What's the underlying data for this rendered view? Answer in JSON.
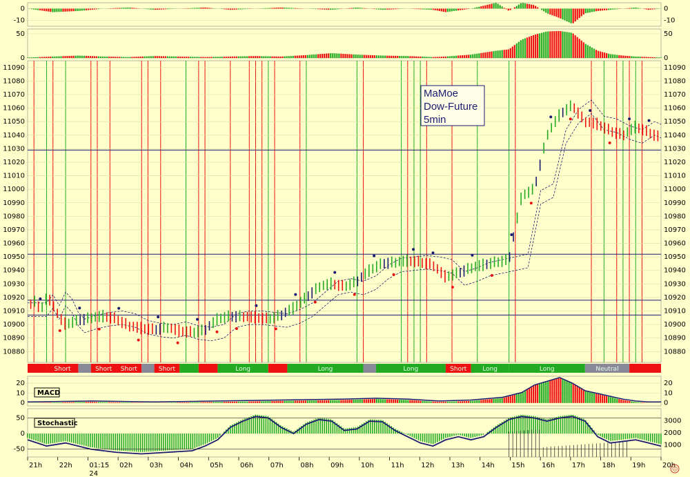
{
  "title_lines": [
    "MaMoe",
    "Dow-Future",
    "5min"
  ],
  "colors": {
    "background": "#ffffcc",
    "up": "#22aa22",
    "down": "#ee1111",
    "price": "#1a1a70",
    "grid": "#d9d9a0",
    "panel_label_bg": "#ffffcc"
  },
  "chart_data": [
    {
      "panel": "top-oscillator-1",
      "type": "area",
      "ylim": [
        -15,
        5
      ],
      "yticks": [
        0,
        -10
      ],
      "description_series": "histogram green/red",
      "points": [
        [
          0,
          0
        ],
        [
          4,
          -3
        ],
        [
          8,
          -2
        ],
        [
          12,
          0
        ],
        [
          16,
          1
        ],
        [
          20,
          -1
        ],
        [
          24,
          0
        ],
        [
          28,
          1
        ],
        [
          32,
          -1
        ],
        [
          36,
          0
        ],
        [
          40,
          1
        ],
        [
          44,
          0
        ],
        [
          48,
          -1
        ],
        [
          52,
          1
        ],
        [
          56,
          -1
        ],
        [
          60,
          0
        ],
        [
          64,
          -1
        ],
        [
          66,
          -3
        ],
        [
          70,
          0
        ],
        [
          74,
          5
        ],
        [
          76,
          -2
        ],
        [
          78,
          5
        ],
        [
          80,
          3
        ],
        [
          82,
          -4
        ],
        [
          84,
          -8
        ],
        [
          86,
          -13
        ],
        [
          88,
          -4
        ],
        [
          90,
          -2
        ],
        [
          92,
          -1
        ],
        [
          94,
          0
        ],
        [
          96,
          1
        ],
        [
          98,
          -1
        ],
        [
          100,
          0
        ]
      ]
    },
    {
      "panel": "top-oscillator-2",
      "type": "area",
      "ylim": [
        0,
        60
      ],
      "yticks": [
        50,
        0
      ],
      "points": [
        [
          0,
          1
        ],
        [
          4,
          3
        ],
        [
          8,
          5
        ],
        [
          12,
          3
        ],
        [
          16,
          2
        ],
        [
          20,
          4
        ],
        [
          24,
          3
        ],
        [
          28,
          2
        ],
        [
          32,
          3
        ],
        [
          36,
          4
        ],
        [
          40,
          3
        ],
        [
          44,
          6
        ],
        [
          48,
          10
        ],
        [
          52,
          7
        ],
        [
          56,
          5
        ],
        [
          60,
          4
        ],
        [
          64,
          2
        ],
        [
          66,
          3
        ],
        [
          70,
          7
        ],
        [
          74,
          15
        ],
        [
          76,
          18
        ],
        [
          78,
          38
        ],
        [
          80,
          48
        ],
        [
          82,
          55
        ],
        [
          84,
          56
        ],
        [
          86,
          52
        ],
        [
          88,
          30
        ],
        [
          90,
          15
        ],
        [
          92,
          8
        ],
        [
          94,
          5
        ],
        [
          96,
          3
        ],
        [
          98,
          2
        ],
        [
          100,
          1
        ]
      ]
    },
    {
      "panel": "price",
      "type": "line",
      "ylim": [
        10872,
        11095
      ],
      "yticks": [
        11090,
        11080,
        11070,
        11060,
        11050,
        11040,
        11030,
        11020,
        11010,
        11000,
        10990,
        10980,
        10970,
        10960,
        10950,
        10940,
        10930,
        10920,
        10910,
        10900,
        10890,
        10880
      ],
      "hlines": [
        11029,
        10952,
        10918,
        10907
      ],
      "series": [
        {
          "points": [
            [
              0,
              10912
            ],
            [
              1,
              10918
            ],
            [
              2,
              10910
            ],
            [
              3,
              10920
            ],
            [
              4,
              10915
            ],
            [
              5,
              10905
            ],
            [
              6,
              10900
            ],
            [
              8,
              10903
            ],
            [
              10,
              10905
            ],
            [
              12,
              10906
            ],
            [
              14,
              10904
            ],
            [
              16,
              10899
            ],
            [
              18,
              10897
            ],
            [
              20,
              10896
            ],
            [
              22,
              10898
            ],
            [
              24,
              10895
            ],
            [
              26,
              10894
            ],
            [
              28,
              10896
            ],
            [
              30,
              10904
            ],
            [
              32,
              10906
            ],
            [
              34,
              10906
            ],
            [
              36,
              10905
            ],
            [
              38,
              10904
            ],
            [
              40,
              10907
            ],
            [
              42,
              10912
            ],
            [
              44,
              10920
            ],
            [
              46,
              10928
            ],
            [
              48,
              10930
            ],
            [
              50,
              10928
            ],
            [
              52,
              10932
            ],
            [
              54,
              10940
            ],
            [
              56,
              10945
            ],
            [
              58,
              10946
            ],
            [
              60,
              10947
            ],
            [
              62,
              10946
            ],
            [
              64,
              10944
            ],
            [
              66,
              10935
            ],
            [
              68,
              10938
            ],
            [
              70,
              10942
            ],
            [
              72,
              10944
            ],
            [
              74,
              10946
            ],
            [
              76,
              10948
            ],
            [
              78,
              10995
            ],
            [
              80,
              11000
            ],
            [
              82,
              11040
            ],
            [
              84,
              11055
            ],
            [
              86,
              11062
            ],
            [
              88,
              11050
            ],
            [
              90,
              11048
            ],
            [
              92,
              11043
            ],
            [
              94,
              11040
            ],
            [
              96,
              11046
            ],
            [
              98,
              11042
            ],
            [
              100,
              11038
            ]
          ]
        }
      ]
    },
    {
      "panel": "macd",
      "type": "area",
      "ylim": [
        -3,
        27
      ],
      "yticks": [
        20,
        10,
        0
      ],
      "points": [
        [
          0,
          0
        ],
        [
          10,
          1
        ],
        [
          20,
          0
        ],
        [
          30,
          1
        ],
        [
          40,
          2
        ],
        [
          50,
          3
        ],
        [
          55,
          4
        ],
        [
          60,
          3
        ],
        [
          65,
          1
        ],
        [
          70,
          2
        ],
        [
          75,
          5
        ],
        [
          78,
          10
        ],
        [
          80,
          18
        ],
        [
          82,
          22
        ],
        [
          84,
          26
        ],
        [
          86,
          20
        ],
        [
          88,
          12
        ],
        [
          90,
          9
        ],
        [
          92,
          6
        ],
        [
          94,
          3
        ],
        [
          96,
          1
        ],
        [
          98,
          0
        ],
        [
          100,
          0
        ]
      ]
    },
    {
      "panel": "stochastic",
      "type": "line",
      "ylim": [
        -75,
        80
      ],
      "yticks": [
        50,
        0,
        -50
      ],
      "points": [
        [
          0,
          -20
        ],
        [
          3,
          -40
        ],
        [
          6,
          -30
        ],
        [
          10,
          -50
        ],
        [
          14,
          -60
        ],
        [
          18,
          -65
        ],
        [
          22,
          -60
        ],
        [
          26,
          -55
        ],
        [
          28,
          -40
        ],
        [
          30,
          -20
        ],
        [
          32,
          20
        ],
        [
          34,
          40
        ],
        [
          36,
          55
        ],
        [
          38,
          50
        ],
        [
          40,
          20
        ],
        [
          42,
          0
        ],
        [
          44,
          30
        ],
        [
          46,
          45
        ],
        [
          48,
          40
        ],
        [
          50,
          10
        ],
        [
          52,
          15
        ],
        [
          54,
          40
        ],
        [
          56,
          38
        ],
        [
          58,
          10
        ],
        [
          60,
          -10
        ],
        [
          62,
          -30
        ],
        [
          64,
          -40
        ],
        [
          66,
          -20
        ],
        [
          68,
          -10
        ],
        [
          70,
          -20
        ],
        [
          72,
          -10
        ],
        [
          74,
          20
        ],
        [
          76,
          45
        ],
        [
          78,
          55
        ],
        [
          80,
          50
        ],
        [
          82,
          40
        ],
        [
          84,
          50
        ],
        [
          86,
          55
        ],
        [
          88,
          40
        ],
        [
          90,
          -10
        ],
        [
          92,
          -30
        ],
        [
          94,
          -25
        ],
        [
          96,
          -20
        ],
        [
          98,
          -30
        ],
        [
          100,
          -40
        ]
      ],
      "right_yticks": [
        3000,
        2000,
        1000
      ]
    }
  ],
  "panel_labels": {
    "macd": "MACD",
    "stochastic": "Stochastic"
  },
  "time_axis": {
    "labels": [
      "21h",
      "22h",
      "01:15",
      "02h",
      "03h",
      "04h",
      "05h",
      "06h",
      "07h",
      "08h",
      "09h",
      "10h",
      "11h",
      "12h",
      "13h",
      "14h",
      "15h",
      "16h",
      "17h",
      "18h",
      "19h",
      "20h"
    ],
    "sub_label": "24"
  },
  "signal_band": {
    "segments": [
      {
        "from": 0,
        "to": 3,
        "state": "short",
        "label": ""
      },
      {
        "from": 3,
        "to": 8,
        "state": "short",
        "label": "Short"
      },
      {
        "from": 8,
        "to": 10,
        "state": "neutral",
        "label": ""
      },
      {
        "from": 10,
        "to": 14,
        "state": "short",
        "label": "Short"
      },
      {
        "from": 14,
        "to": 18,
        "state": "short",
        "label": "Short"
      },
      {
        "from": 18,
        "to": 20,
        "state": "neutral",
        "label": ""
      },
      {
        "from": 20,
        "to": 24,
        "state": "short",
        "label": "Short"
      },
      {
        "from": 24,
        "to": 27,
        "state": "long",
        "label": ""
      },
      {
        "from": 27,
        "to": 30,
        "state": "short",
        "label": ""
      },
      {
        "from": 30,
        "to": 38,
        "state": "long",
        "label": "Long"
      },
      {
        "from": 38,
        "to": 41,
        "state": "short",
        "label": ""
      },
      {
        "from": 41,
        "to": 53,
        "state": "long",
        "label": "Long"
      },
      {
        "from": 53,
        "to": 55,
        "state": "neutral",
        "label": ""
      },
      {
        "from": 55,
        "to": 66,
        "state": "long",
        "label": "Long"
      },
      {
        "from": 66,
        "to": 70,
        "state": "short",
        "label": "Short"
      },
      {
        "from": 70,
        "to": 76,
        "state": "long",
        "label": "Long"
      },
      {
        "from": 76,
        "to": 88,
        "state": "long",
        "label": "Long"
      },
      {
        "from": 88,
        "to": 95,
        "state": "neutral",
        "label": "Neutral"
      },
      {
        "from": 95,
        "to": 100,
        "state": "short",
        "label": ""
      }
    ]
  },
  "vertical_signals": {
    "green": [
      3,
      6,
      25,
      38,
      44,
      52,
      59,
      61,
      62,
      71,
      76,
      91,
      94,
      96
    ],
    "red": [
      1,
      4,
      10,
      11,
      13,
      18,
      19,
      21,
      27,
      28,
      32,
      35,
      36,
      37,
      39,
      43,
      53,
      60,
      63,
      67,
      77,
      89,
      93,
      95,
      97
    ]
  }
}
